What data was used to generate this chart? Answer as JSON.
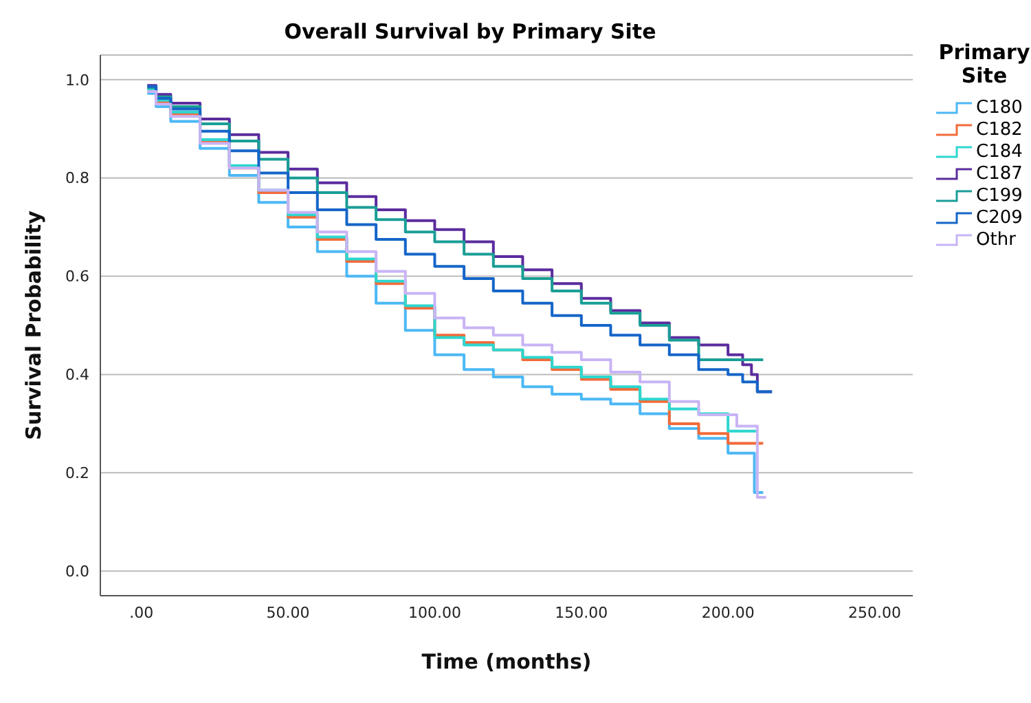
{
  "chart_data": {
    "type": "step",
    "title": "Overall Survival by Primary Site",
    "xlabel": "Time (months)",
    "ylabel": "Survival Probability",
    "legend_title": "Primary Site",
    "legend": "right",
    "grid": "y",
    "line_style": "solid",
    "marker": "none",
    "xlim": [
      -14,
      263
    ],
    "xticks": [
      {
        "value": 0,
        "label": ".00"
      },
      {
        "value": 50,
        "label": "50.00"
      },
      {
        "value": 100,
        "label": "100.00"
      },
      {
        "value": 150,
        "label": "150.00"
      },
      {
        "value": 200,
        "label": "200.00"
      },
      {
        "value": 250,
        "label": "250.00"
      }
    ],
    "ylim": [
      -0.05,
      1.05
    ],
    "yticks": [
      {
        "value": 0,
        "label": "0.0"
      },
      {
        "value": 0.2,
        "label": "0.2"
      },
      {
        "value": 0.4,
        "label": "0.4"
      },
      {
        "value": 0.6,
        "label": "0.6"
      },
      {
        "value": 0.8,
        "label": "0.8"
      },
      {
        "value": 1,
        "label": "1.0"
      }
    ],
    "series": [
      {
        "name": "C180",
        "color": "#4cb8f5",
        "x": [
          2,
          5,
          10,
          20,
          30,
          40,
          50,
          60,
          70,
          80,
          90,
          100,
          110,
          120,
          130,
          140,
          150,
          160,
          170,
          180,
          190,
          200,
          209,
          212
        ],
        "values": [
          0.972,
          0.945,
          0.915,
          0.86,
          0.805,
          0.75,
          0.7,
          0.65,
          0.6,
          0.545,
          0.49,
          0.44,
          0.41,
          0.395,
          0.375,
          0.36,
          0.35,
          0.34,
          0.32,
          0.29,
          0.27,
          0.24,
          0.16,
          0.16
        ]
      },
      {
        "name": "C182",
        "color": "#f26b3a",
        "x": [
          2,
          5,
          10,
          20,
          30,
          40,
          50,
          60,
          70,
          80,
          90,
          100,
          110,
          120,
          130,
          140,
          150,
          160,
          170,
          180,
          190,
          200,
          212
        ],
        "values": [
          0.978,
          0.955,
          0.93,
          0.875,
          0.82,
          0.77,
          0.72,
          0.675,
          0.63,
          0.585,
          0.535,
          0.48,
          0.465,
          0.45,
          0.43,
          0.41,
          0.39,
          0.37,
          0.345,
          0.3,
          0.28,
          0.26,
          0.26
        ]
      },
      {
        "name": "C184",
        "color": "#2ed6cf",
        "x": [
          2,
          5,
          10,
          20,
          30,
          40,
          50,
          60,
          70,
          80,
          90,
          100,
          110,
          120,
          130,
          140,
          150,
          160,
          170,
          180,
          190,
          200,
          210
        ],
        "values": [
          0.98,
          0.958,
          0.934,
          0.878,
          0.825,
          0.775,
          0.725,
          0.68,
          0.635,
          0.59,
          0.54,
          0.475,
          0.46,
          0.45,
          0.435,
          0.415,
          0.395,
          0.375,
          0.35,
          0.33,
          0.32,
          0.285,
          0.285
        ]
      },
      {
        "name": "C187",
        "color": "#5b2c9e",
        "x": [
          2,
          5,
          10,
          20,
          30,
          40,
          50,
          60,
          70,
          80,
          90,
          100,
          110,
          120,
          130,
          140,
          150,
          160,
          170,
          180,
          190,
          200,
          205,
          208,
          210,
          215
        ],
        "values": [
          0.988,
          0.97,
          0.952,
          0.92,
          0.888,
          0.852,
          0.818,
          0.79,
          0.762,
          0.735,
          0.713,
          0.695,
          0.67,
          0.64,
          0.613,
          0.585,
          0.555,
          0.53,
          0.505,
          0.475,
          0.46,
          0.44,
          0.42,
          0.4,
          0.365,
          0.365
        ]
      },
      {
        "name": "C199",
        "color": "#1a9e96",
        "x": [
          2,
          5,
          10,
          20,
          30,
          40,
          50,
          60,
          70,
          80,
          90,
          100,
          110,
          120,
          130,
          140,
          150,
          160,
          170,
          180,
          190,
          212
        ],
        "values": [
          0.984,
          0.965,
          0.945,
          0.91,
          0.875,
          0.838,
          0.8,
          0.77,
          0.74,
          0.715,
          0.69,
          0.67,
          0.645,
          0.62,
          0.595,
          0.57,
          0.545,
          0.525,
          0.5,
          0.47,
          0.43,
          0.43
        ]
      },
      {
        "name": "C209",
        "color": "#1565c8",
        "x": [
          2,
          5,
          10,
          20,
          30,
          40,
          50,
          60,
          70,
          80,
          90,
          100,
          110,
          120,
          130,
          140,
          150,
          160,
          170,
          180,
          190,
          200,
          205,
          210,
          215
        ],
        "values": [
          0.986,
          0.962,
          0.94,
          0.895,
          0.855,
          0.81,
          0.77,
          0.735,
          0.705,
          0.675,
          0.645,
          0.62,
          0.595,
          0.57,
          0.545,
          0.52,
          0.5,
          0.48,
          0.46,
          0.44,
          0.41,
          0.4,
          0.385,
          0.365,
          0.365
        ]
      },
      {
        "name": "Othr",
        "color": "#c8b4f5",
        "x": [
          2,
          5,
          10,
          20,
          30,
          40,
          50,
          60,
          70,
          80,
          90,
          100,
          110,
          120,
          130,
          140,
          150,
          160,
          170,
          180,
          190,
          203,
          210,
          213
        ],
        "values": [
          0.976,
          0.95,
          0.925,
          0.87,
          0.82,
          0.775,
          0.73,
          0.69,
          0.65,
          0.61,
          0.565,
          0.515,
          0.495,
          0.48,
          0.46,
          0.445,
          0.43,
          0.405,
          0.385,
          0.345,
          0.318,
          0.295,
          0.15,
          0.15
        ]
      }
    ]
  }
}
